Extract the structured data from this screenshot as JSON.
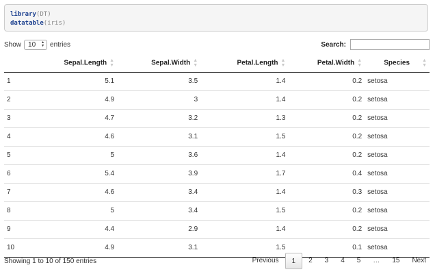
{
  "code": {
    "line1_fn": "library",
    "line1_arg": "(DT)",
    "line2_fn": "datatable",
    "line2_arg": "(iris)"
  },
  "controls": {
    "show_label": "Show",
    "page_length": "10",
    "entries_label": "entries",
    "search_label": "Search:",
    "search_value": ""
  },
  "table": {
    "columns": [
      "",
      "Sepal.Length",
      "Sepal.Width",
      "Petal.Length",
      "Petal.Width",
      "Species"
    ],
    "rows": [
      [
        "1",
        "5.1",
        "3.5",
        "1.4",
        "0.2",
        "setosa"
      ],
      [
        "2",
        "4.9",
        "3",
        "1.4",
        "0.2",
        "setosa"
      ],
      [
        "3",
        "4.7",
        "3.2",
        "1.3",
        "0.2",
        "setosa"
      ],
      [
        "4",
        "4.6",
        "3.1",
        "1.5",
        "0.2",
        "setosa"
      ],
      [
        "5",
        "5",
        "3.6",
        "1.4",
        "0.2",
        "setosa"
      ],
      [
        "6",
        "5.4",
        "3.9",
        "1.7",
        "0.4",
        "setosa"
      ],
      [
        "7",
        "4.6",
        "3.4",
        "1.4",
        "0.3",
        "setosa"
      ],
      [
        "8",
        "5",
        "3.4",
        "1.5",
        "0.2",
        "setosa"
      ],
      [
        "9",
        "4.4",
        "2.9",
        "1.4",
        "0.2",
        "setosa"
      ],
      [
        "10",
        "4.9",
        "3.1",
        "1.5",
        "0.1",
        "setosa"
      ]
    ]
  },
  "footer": {
    "info": "Showing 1 to 10 of 150 entries",
    "previous": "Previous",
    "pages": [
      "1",
      "2",
      "3",
      "4",
      "5",
      "…",
      "15"
    ],
    "current_page": "1",
    "next": "Next"
  }
}
